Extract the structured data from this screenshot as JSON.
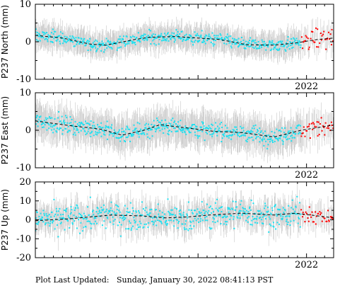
{
  "footer": {
    "label": "Plot Last Updated:",
    "timestamp": "Sunday, January 30, 2022 08:41:13 PST"
  },
  "colors": {
    "points": "#1ee0f0",
    "recent_points": "#ff0000",
    "error_bars": "#c8c8c8",
    "trend": "#000000",
    "axes": "#000000"
  },
  "chart_data": [
    {
      "type": "scatter",
      "ylabel": "P237 North (mm)",
      "xlim": [
        2019.5,
        2022.25
      ],
      "ylim": [
        -10,
        10
      ],
      "yticks": [
        -10,
        0,
        10
      ],
      "xtick_labels": [
        {
          "x": 2022.0,
          "label": "2022"
        }
      ],
      "error_bar_mm": 3,
      "trend": {
        "x": [
          2019.5,
          2019.75,
          2020.0,
          2020.15,
          2020.4,
          2020.55,
          2020.8,
          2021.0,
          2021.2,
          2021.45,
          2021.7,
          2021.9,
          2022.1,
          2022.25
        ],
        "y": [
          1.7,
          1.0,
          -0.6,
          -0.9,
          0.5,
          1.2,
          1.4,
          1.0,
          0.6,
          -0.8,
          -0.9,
          -0.3,
          0.6,
          1.0
        ]
      },
      "series": [
        {
          "color": "cyan",
          "x_range": [
            2019.5,
            2021.95
          ],
          "noise_mm": 1.2
        },
        {
          "color": "red",
          "x_range": [
            2021.95,
            2022.25
          ],
          "noise_mm": 1.8
        }
      ]
    },
    {
      "type": "scatter",
      "ylabel": "P237 East (mm)",
      "xlim": [
        2019.5,
        2022.25
      ],
      "ylim": [
        -10,
        10
      ],
      "yticks": [
        -10,
        0,
        10
      ],
      "xtick_labels": [
        {
          "x": 2022.0,
          "label": "2022"
        }
      ],
      "error_bar_mm": 4,
      "trend": {
        "x": [
          2019.5,
          2019.8,
          2020.1,
          2020.3,
          2020.5,
          2020.65,
          2020.9,
          2021.15,
          2021.4,
          2021.7,
          2021.95,
          2022.25
        ],
        "y": [
          2.5,
          1.3,
          0.3,
          -1.3,
          0.0,
          1.5,
          0.6,
          -0.3,
          -0.6,
          -1.8,
          0.0,
          1.4
        ]
      },
      "series": [
        {
          "color": "cyan",
          "x_range": [
            2019.5,
            2021.95
          ],
          "noise_mm": 1.6
        },
        {
          "color": "red",
          "x_range": [
            2021.95,
            2022.25
          ],
          "noise_mm": 1.8
        }
      ]
    },
    {
      "type": "scatter",
      "ylabel": "P237 Up (mm)",
      "xlim": [
        2019.5,
        2022.25
      ],
      "ylim": [
        -20,
        20
      ],
      "yticks": [
        -20,
        -10,
        0,
        10,
        20
      ],
      "xtick_labels": [
        {
          "x": 2022.0,
          "label": "2022"
        }
      ],
      "error_bar_mm": 6,
      "trend": {
        "x": [
          2019.5,
          2019.8,
          2020.0,
          2020.2,
          2020.5,
          2020.7,
          2020.9,
          2021.1,
          2021.4,
          2021.7,
          2021.9,
          2022.25
        ],
        "y": [
          -0.5,
          0.5,
          1.5,
          2.5,
          2.0,
          1.0,
          1.5,
          2.5,
          3.5,
          2.5,
          3.5,
          1.0
        ]
      },
      "series": [
        {
          "color": "cyan",
          "x_range": [
            2019.5,
            2021.95
          ],
          "noise_mm": 5.0
        },
        {
          "color": "red",
          "x_range": [
            2021.95,
            2022.25
          ],
          "noise_mm": 3.0
        }
      ]
    }
  ]
}
